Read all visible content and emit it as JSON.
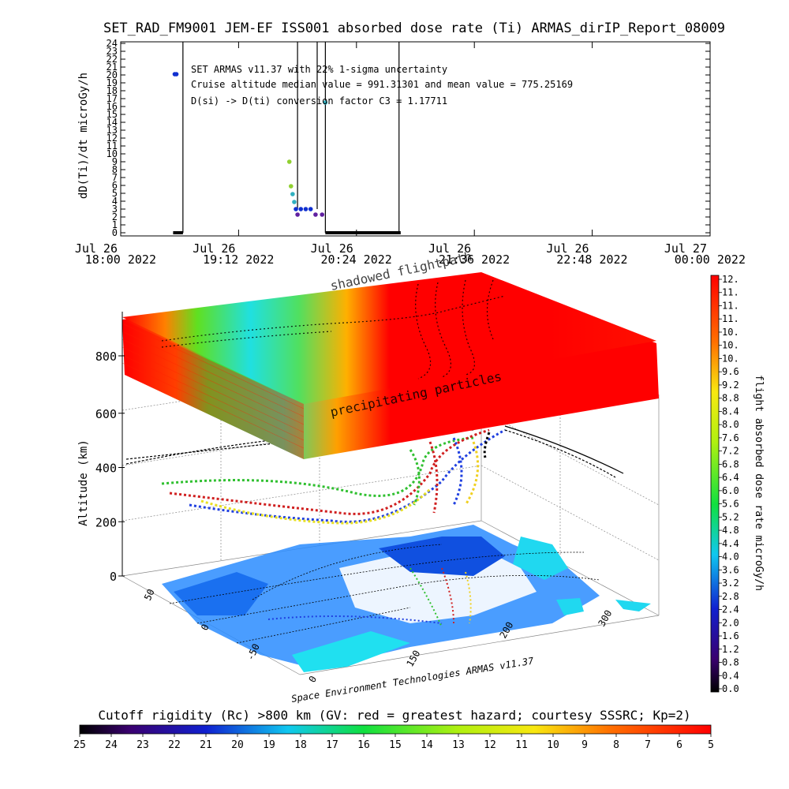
{
  "title": "SET_RAD_FM9001  JEM-EF ISS001 absorbed dose rate (Ti) ARMAS_dirIP_Report_08009",
  "colors": {
    "series": "#000000",
    "dot_blue": "#1030d0",
    "dot_teal": "#30b0c0",
    "dot_green": "#90d030",
    "dot_purple": "#6020a0",
    "bar": "#000000",
    "map_land": "#2a8cff",
    "map_sea": "#ffffff",
    "aqua": "#20e0f0"
  },
  "chart_data": [
    {
      "type": "line",
      "title": "SET_RAD_FM9001  JEM-EF ISS001 absorbed dose rate (Ti) ARMAS_dirIP_Report_08009",
      "ylabel": "dD(Ti)/dt microGy/h",
      "ylim": [
        0,
        24
      ],
      "yticks": [
        "0",
        "1",
        "2",
        "3",
        "4",
        "5",
        "6",
        "7",
        "8",
        "9",
        "10",
        "11",
        "12",
        "13",
        "14",
        "15",
        "16",
        "17",
        "18",
        "19",
        "20",
        "21",
        "22",
        "23",
        "24"
      ],
      "xlim": [
        "2022-07-26T18:00",
        "2022-07-27T00:00"
      ],
      "xticks": [
        {
          "line1": "Jul 26",
          "line2": "18:00 2022"
        },
        {
          "line1": "Jul 26",
          "line2": "19:12 2022"
        },
        {
          "line1": "Jul 26",
          "line2": "20:24 2022"
        },
        {
          "line1": "Jul 26",
          "line2": "21:36 2022"
        },
        {
          "line1": "Jul 26",
          "line2": "22:48 2022"
        },
        {
          "line1": "Jul 27",
          "line2": "00:00 2022"
        }
      ],
      "annotations": [
        "SET ARMAS v11.37 with 22% 1-sigma uncertainty",
        "Cruise altitude median value = 991.31301 and mean value = 775.25169",
        "D(si) -> D(ti) conversion factor C3 = 1.17711"
      ],
      "spikes": [
        {
          "t": "2022-07-26T18:38",
          "base": 0,
          "top": 24
        },
        {
          "t": "2022-07-26T19:48",
          "base": 3,
          "top": 24
        },
        {
          "t": "2022-07-26T20:00",
          "base": 3,
          "top": 24
        },
        {
          "t": "2022-07-26T20:05",
          "base": 0,
          "top": 24
        },
        {
          "t": "2022-07-26T20:50",
          "base": 0,
          "top": 24
        }
      ],
      "points": [
        {
          "t": "2022-07-26T18:33",
          "y": 20.1,
          "c": "dot_blue"
        },
        {
          "t": "2022-07-26T18:34",
          "y": 20.1,
          "c": "dot_blue"
        },
        {
          "t": "2022-07-26T19:43",
          "y": 9.0,
          "c": "dot_green"
        },
        {
          "t": "2022-07-26T19:44",
          "y": 5.9,
          "c": "dot_green"
        },
        {
          "t": "2022-07-26T19:45",
          "y": 4.9,
          "c": "dot_teal"
        },
        {
          "t": "2022-07-26T19:46",
          "y": 3.9,
          "c": "dot_teal"
        },
        {
          "t": "2022-07-26T19:47",
          "y": 3.0,
          "c": "dot_blue"
        },
        {
          "t": "2022-07-26T19:48",
          "y": 2.3,
          "c": "dot_purple"
        },
        {
          "t": "2022-07-26T19:50",
          "y": 3.0,
          "c": "dot_blue"
        },
        {
          "t": "2022-07-26T19:53",
          "y": 3.0,
          "c": "dot_blue"
        },
        {
          "t": "2022-07-26T19:56",
          "y": 3.0,
          "c": "dot_blue"
        },
        {
          "t": "2022-07-26T19:59",
          "y": 2.3,
          "c": "dot_purple"
        },
        {
          "t": "2022-07-26T20:03",
          "y": 2.3,
          "c": "dot_purple"
        },
        {
          "t": "2022-07-26T20:05",
          "y": 16.5,
          "c": "dot_teal"
        }
      ],
      "zero_bars": [
        {
          "t0": "2022-07-26T18:32",
          "t1": "2022-07-26T18:38"
        },
        {
          "t0": "2022-07-26T20:05",
          "t1": "2022-07-26T20:51"
        }
      ]
    },
    {
      "type": "heatmap",
      "zlabel": "Altitude (km)",
      "zticks": [
        "0",
        "200",
        "400",
        "600",
        "800"
      ],
      "xticks": [
        "0",
        "150",
        "200",
        "300"
      ],
      "yticks": [
        "50",
        "0",
        "-50"
      ],
      "annotations": [
        "shadowed flightpath",
        "precipitating particles",
        "Space Environment Technologies ARMAS v11.37"
      ],
      "colorbar": {
        "label": "flight absorbed dose rate microGy/h",
        "ticks": [
          "0.0",
          "0.4",
          "0.8",
          "1.2",
          "1.6",
          "2.0",
          "2.4",
          "2.8",
          "3.2",
          "3.6",
          "4.0",
          "4.4",
          "4.8",
          "5.2",
          "5.6",
          "6.0",
          "6.4",
          "6.8",
          "7.2",
          "7.6",
          "8.0",
          "8.4",
          "8.8",
          "9.2",
          "9.6",
          "10.",
          "10.",
          "10.",
          "11.",
          "11.",
          "11.",
          "12."
        ]
      }
    },
    {
      "type": "colorbar",
      "title": "Cutoff rigidity (Rc) >800 km (GV: red = greatest hazard; courtesy SSSRC; Kp=2)",
      "ticks": [
        "25",
        "24",
        "23",
        "22",
        "21",
        "20",
        "19",
        "18",
        "17",
        "16",
        "15",
        "14",
        "13",
        "12",
        "11",
        "10",
        "9",
        "8",
        "7",
        "6",
        "5"
      ]
    }
  ]
}
